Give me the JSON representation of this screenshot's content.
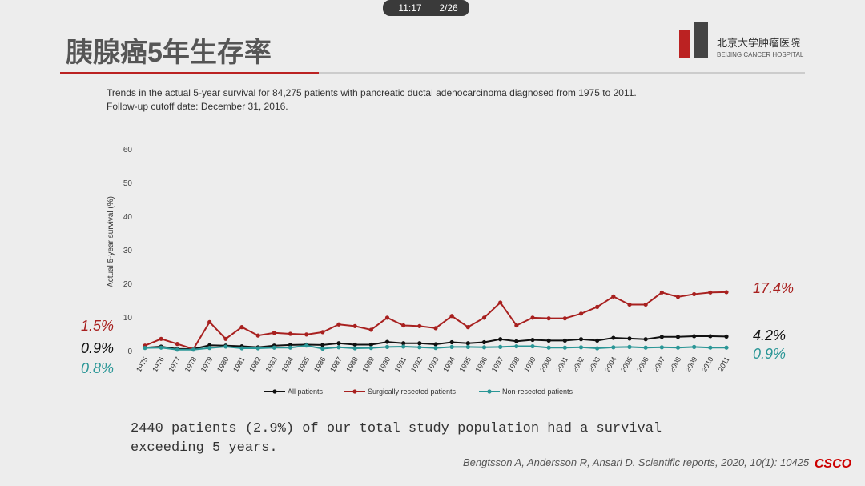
{
  "status_bar": {
    "time": "11:17",
    "page": "2/26"
  },
  "slide_title": "胰腺癌5年生存率",
  "logo": {
    "name": "北京大学肿瘤医院",
    "subtitle": "BEIJING CANCER HOSPITAL"
  },
  "chart_data": {
    "type": "line",
    "title": "Trends in the actual 5-year survival for 84,275 patients with pancreatic ductal adenocarcinoma diagnosed from 1975 to 2011. Follow-up cutoff date: December 31, 2016.",
    "ylabel": "Actual 5-year survival (%)",
    "categories": [
      "1975",
      "1976",
      "1977",
      "1978",
      "1979",
      "1980",
      "1981",
      "1982",
      "1983",
      "1984",
      "1985",
      "1986",
      "1987",
      "1988",
      "1989",
      "1990",
      "1991",
      "1992",
      "1993",
      "1994",
      "1995",
      "1996",
      "1997",
      "1998",
      "1999",
      "2000",
      "2001",
      "2002",
      "2003",
      "2004",
      "2005",
      "2006",
      "2007",
      "2008",
      "2009",
      "2010",
      "2011"
    ],
    "ylim": [
      0,
      60
    ],
    "yticks": [
      0,
      10,
      20,
      30,
      40,
      50,
      60
    ],
    "grid": false,
    "legend": "bottom",
    "series": [
      {
        "name": "All patients",
        "color": "#111111",
        "values": [
          0.9,
          1.2,
          0.5,
          0.5,
          1.6,
          1.5,
          1.3,
          1.0,
          1.5,
          1.7,
          1.8,
          1.7,
          2.2,
          1.8,
          1.8,
          2.6,
          2.2,
          2.2,
          1.9,
          2.5,
          2.2,
          2.5,
          3.4,
          2.8,
          3.2,
          3.0,
          3.0,
          3.4,
          3.0,
          3.8,
          3.6,
          3.4,
          4.1,
          4.1,
          4.3,
          4.3,
          4.2
        ],
        "value_labels": [
          "0.9%",
          null,
          null,
          null,
          null,
          null,
          null,
          null,
          null,
          null,
          null,
          null,
          null,
          null,
          null,
          null,
          null,
          null,
          null,
          null,
          null,
          null,
          null,
          null,
          null,
          null,
          null,
          null,
          null,
          null,
          null,
          null,
          null,
          null,
          null,
          null,
          "4.2%"
        ]
      },
      {
        "name": "Surgically resected patients",
        "color": "#a8201f",
        "values": [
          1.5,
          3.5,
          2.0,
          0.5,
          8.5,
          3.5,
          7.0,
          4.5,
          5.3,
          5.0,
          4.8,
          5.5,
          7.8,
          7.3,
          6.2,
          9.8,
          7.5,
          7.3,
          6.7,
          10.3,
          7.0,
          9.8,
          14.3,
          7.5,
          9.8,
          9.6,
          9.6,
          11.0,
          13.0,
          16.1,
          13.7,
          13.7,
          17.3,
          16.0,
          16.8,
          17.3,
          17.4
        ],
        "value_labels": [
          "1.5%",
          null,
          null,
          null,
          null,
          null,
          null,
          null,
          null,
          null,
          null,
          null,
          null,
          null,
          null,
          null,
          null,
          null,
          null,
          null,
          null,
          null,
          null,
          null,
          null,
          null,
          null,
          null,
          null,
          null,
          null,
          null,
          null,
          null,
          null,
          null,
          "17.4%"
        ]
      },
      {
        "name": "Non-resected patients",
        "color": "#2a9696",
        "values": [
          0.8,
          0.9,
          0.3,
          0.3,
          0.8,
          1.2,
          0.7,
          0.7,
          0.9,
          0.9,
          1.5,
          0.6,
          1.0,
          0.7,
          0.8,
          1.1,
          1.2,
          1.0,
          0.8,
          1.1,
          1.1,
          1.0,
          1.1,
          1.3,
          1.3,
          0.9,
          0.9,
          1.0,
          0.7,
          1.0,
          1.1,
          0.9,
          1.0,
          0.9,
          1.1,
          0.9,
          0.9
        ],
        "value_labels": [
          "0.8%",
          null,
          null,
          null,
          null,
          null,
          null,
          null,
          null,
          null,
          null,
          null,
          null,
          null,
          null,
          null,
          null,
          null,
          null,
          null,
          null,
          null,
          null,
          null,
          null,
          null,
          null,
          null,
          null,
          null,
          null,
          null,
          null,
          null,
          null,
          null,
          "0.9%"
        ]
      }
    ]
  },
  "body_text": "2440 patients (2.9%) of our total study population had a survival exceeding 5 years.",
  "citation": "Bengtsson A, Andersson R, Ansari D. Scientific reports, 2020, 10(1): 10425",
  "corner_logo": "CSCO"
}
